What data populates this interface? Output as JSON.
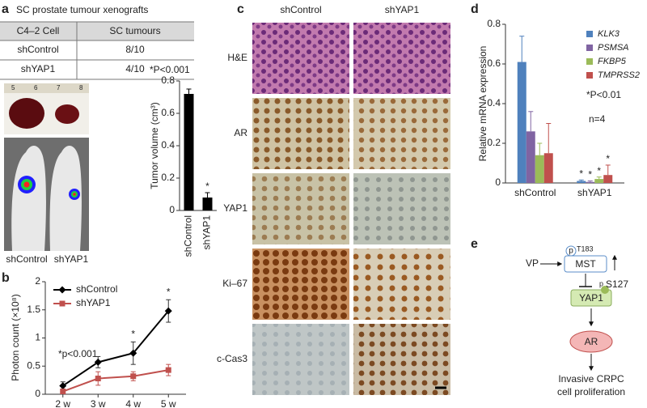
{
  "panels": [
    "a",
    "b",
    "c",
    "d",
    "e"
  ],
  "panel_a": {
    "title": "SC prostate tumour xenografts",
    "table": {
      "header": [
        "C4–2 Cell",
        "SC tumours"
      ],
      "rows": [
        [
          "shControl",
          "8/10"
        ],
        [
          "shYAP1",
          "4/10"
        ]
      ]
    },
    "ruler": [
      "5",
      "6",
      "7",
      "8"
    ],
    "photo_labels": [
      "shControl",
      "shYAP1"
    ]
  },
  "panel_c": {
    "columns": [
      "shControl",
      "shYAP1"
    ],
    "rows": [
      "H&E",
      "AR",
      "YAP1",
      "Ki–67",
      "c-Cas3"
    ]
  },
  "diagram": {
    "input": "VP",
    "kinase": "MST",
    "phospho": "p",
    "kinase_site": "T183",
    "effector": "YAP1",
    "effector_site": "S127",
    "target": "AR",
    "outcome": [
      "Invasive CRPC",
      "cell proliferation"
    ]
  },
  "chart_data": [
    {
      "type": "bar",
      "y_label": "Tumor volume (cm³)",
      "annotations": [
        "*P<0.001"
      ],
      "categories": [
        "shControl",
        "shYAP1"
      ],
      "series": [
        {
          "color": "#000000",
          "values": [
            0.72,
            0.08
          ],
          "errors": [
            0.03,
            0.03
          ],
          "markers": [
            null,
            "*"
          ]
        }
      ],
      "ylim": [
        0,
        0.8
      ],
      "yticks": [
        0,
        0.2,
        0.4,
        0.6,
        0.8
      ],
      "rotate_categories": true
    },
    {
      "type": "line",
      "y_label": "Photon count (×10⁸)",
      "annotations": [
        "*p<0.001"
      ],
      "categories": [
        "2 w",
        "3 w",
        "4 w",
        "5 w"
      ],
      "series": [
        {
          "name": "shControl",
          "color": "#000000",
          "marker": "diamond",
          "values": [
            0.15,
            0.57,
            0.73,
            1.48
          ],
          "errors": [
            0.07,
            0.1,
            0.2,
            0.2
          ],
          "markers": [
            null,
            null,
            "*",
            "*"
          ]
        },
        {
          "name": "shYAP1",
          "color": "#c0504d",
          "marker": "square",
          "values": [
            0.05,
            0.28,
            0.32,
            0.43
          ],
          "errors": [
            0.03,
            0.12,
            0.08,
            0.1
          ],
          "markers": [
            null,
            null,
            null,
            null
          ]
        }
      ],
      "ylim": [
        0,
        2
      ],
      "yticks": [
        0,
        0.5,
        1,
        1.5,
        2
      ],
      "legend": "upper left"
    },
    {
      "type": "bar",
      "y_label": "Relative mRNA expression",
      "annotations": [
        "*P<0.01",
        "n=4"
      ],
      "categories": [
        "shControl",
        "shYAP1"
      ],
      "series": [
        {
          "name": "KLK3",
          "color": "#4f81bd",
          "values": [
            0.61,
            0.01
          ],
          "errors": [
            0.13,
            0.005
          ],
          "markers": [
            null,
            "*"
          ]
        },
        {
          "name": "PSMSA",
          "color": "#8064a2",
          "values": [
            0.26,
            0.005
          ],
          "errors": [
            0.1,
            0.005
          ],
          "markers": [
            null,
            "*"
          ]
        },
        {
          "name": "FKBP5",
          "color": "#9bbb59",
          "values": [
            0.14,
            0.02
          ],
          "errors": [
            0.06,
            0.01
          ],
          "markers": [
            null,
            "*"
          ]
        },
        {
          "name": "TMPRSS2",
          "color": "#c0504d",
          "values": [
            0.15,
            0.04
          ],
          "errors": [
            0.15,
            0.05
          ],
          "markers": [
            null,
            "*"
          ]
        }
      ],
      "ylim": [
        0,
        0.8
      ],
      "yticks": [
        0,
        0.2,
        0.4,
        0.6,
        0.8
      ],
      "legend": "upper right",
      "legend_italic": true
    }
  ]
}
